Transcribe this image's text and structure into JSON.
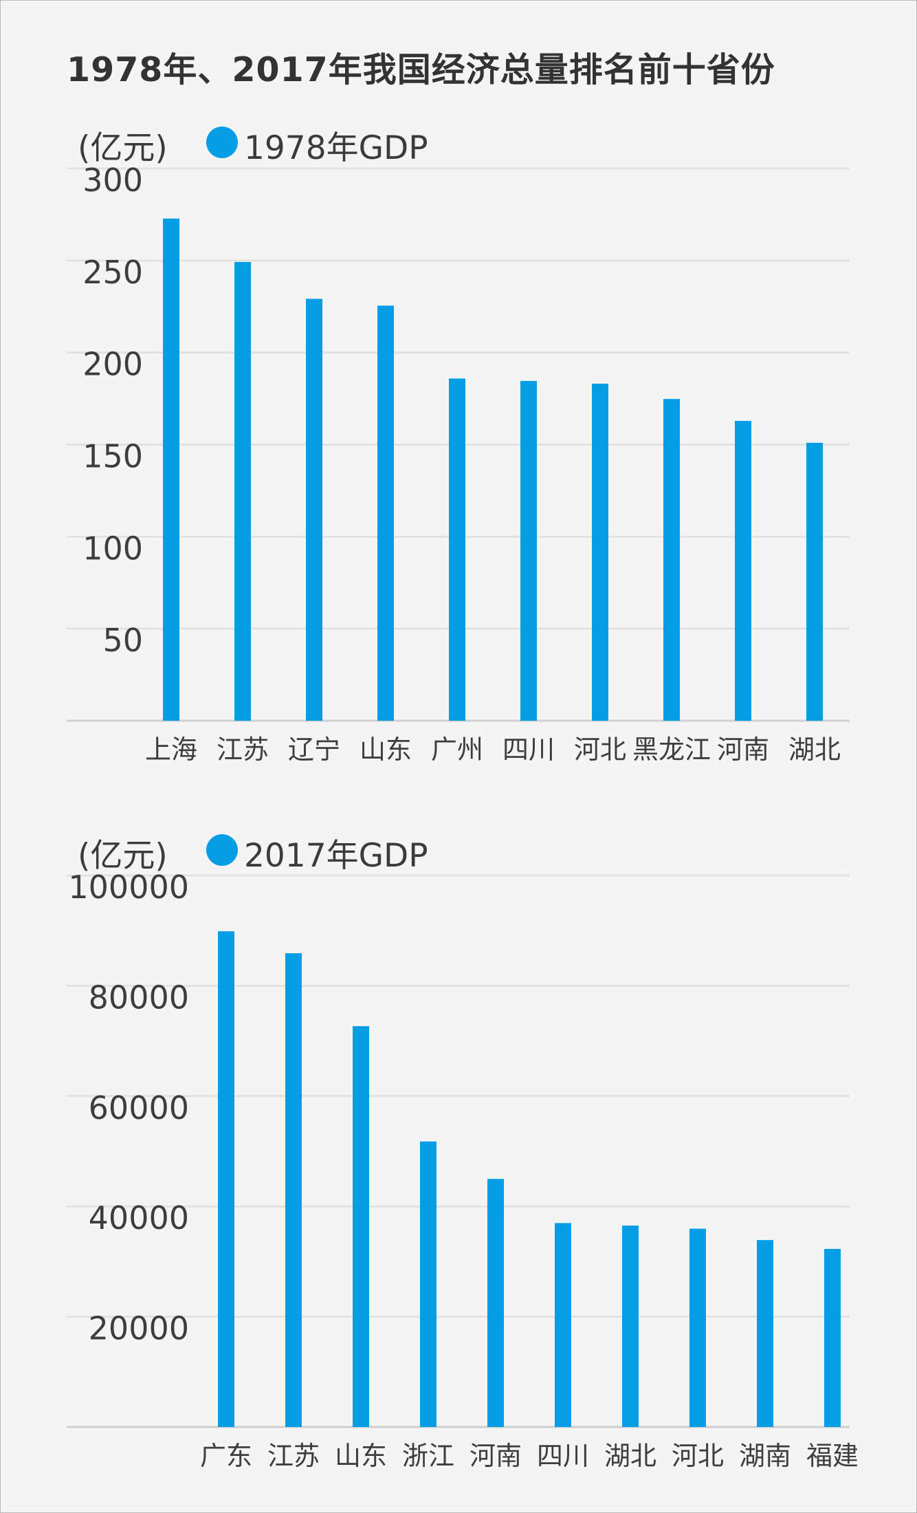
{
  "title": "1978年、2017年我国经济总量排名前十省份",
  "colors": {
    "bar": "#059de6",
    "grid": "#e2e2e2",
    "axis": "#cfcfcf",
    "text": "#3d3d3d"
  },
  "chart_data": [
    {
      "type": "bar",
      "unit_label": "(亿元)",
      "series": [
        {
          "name": "1978年GDP",
          "values": [
            272.8,
            249.2,
            229.2,
            225.5,
            185.9,
            184.6,
            183.1,
            174.8,
            162.9,
            151.0
          ]
        }
      ],
      "categories": [
        "上海",
        "江苏",
        "辽宁",
        "山东",
        "广州",
        "四川",
        "河北",
        "黑龙江",
        "河南",
        "湖北"
      ],
      "yticks": [
        50,
        100,
        150,
        200,
        250,
        300
      ],
      "ylim": [
        0,
        300
      ],
      "grid": true,
      "legend": "top-left"
    },
    {
      "type": "bar",
      "unit_label": "(亿元)",
      "series": [
        {
          "name": "2017年GDP",
          "values": [
            89879,
            85901,
            72678,
            51768,
            44988,
            36980,
            36523,
            35964,
            33903,
            32298
          ]
        }
      ],
      "categories": [
        "广东",
        "江苏",
        "山东",
        "浙江",
        "河南",
        "四川",
        "湖北",
        "河北",
        "湖南",
        "福建"
      ],
      "yticks": [
        20000,
        40000,
        60000,
        80000,
        100000
      ],
      "ylim": [
        0,
        100000
      ],
      "grid": true,
      "legend": "top-left"
    }
  ]
}
